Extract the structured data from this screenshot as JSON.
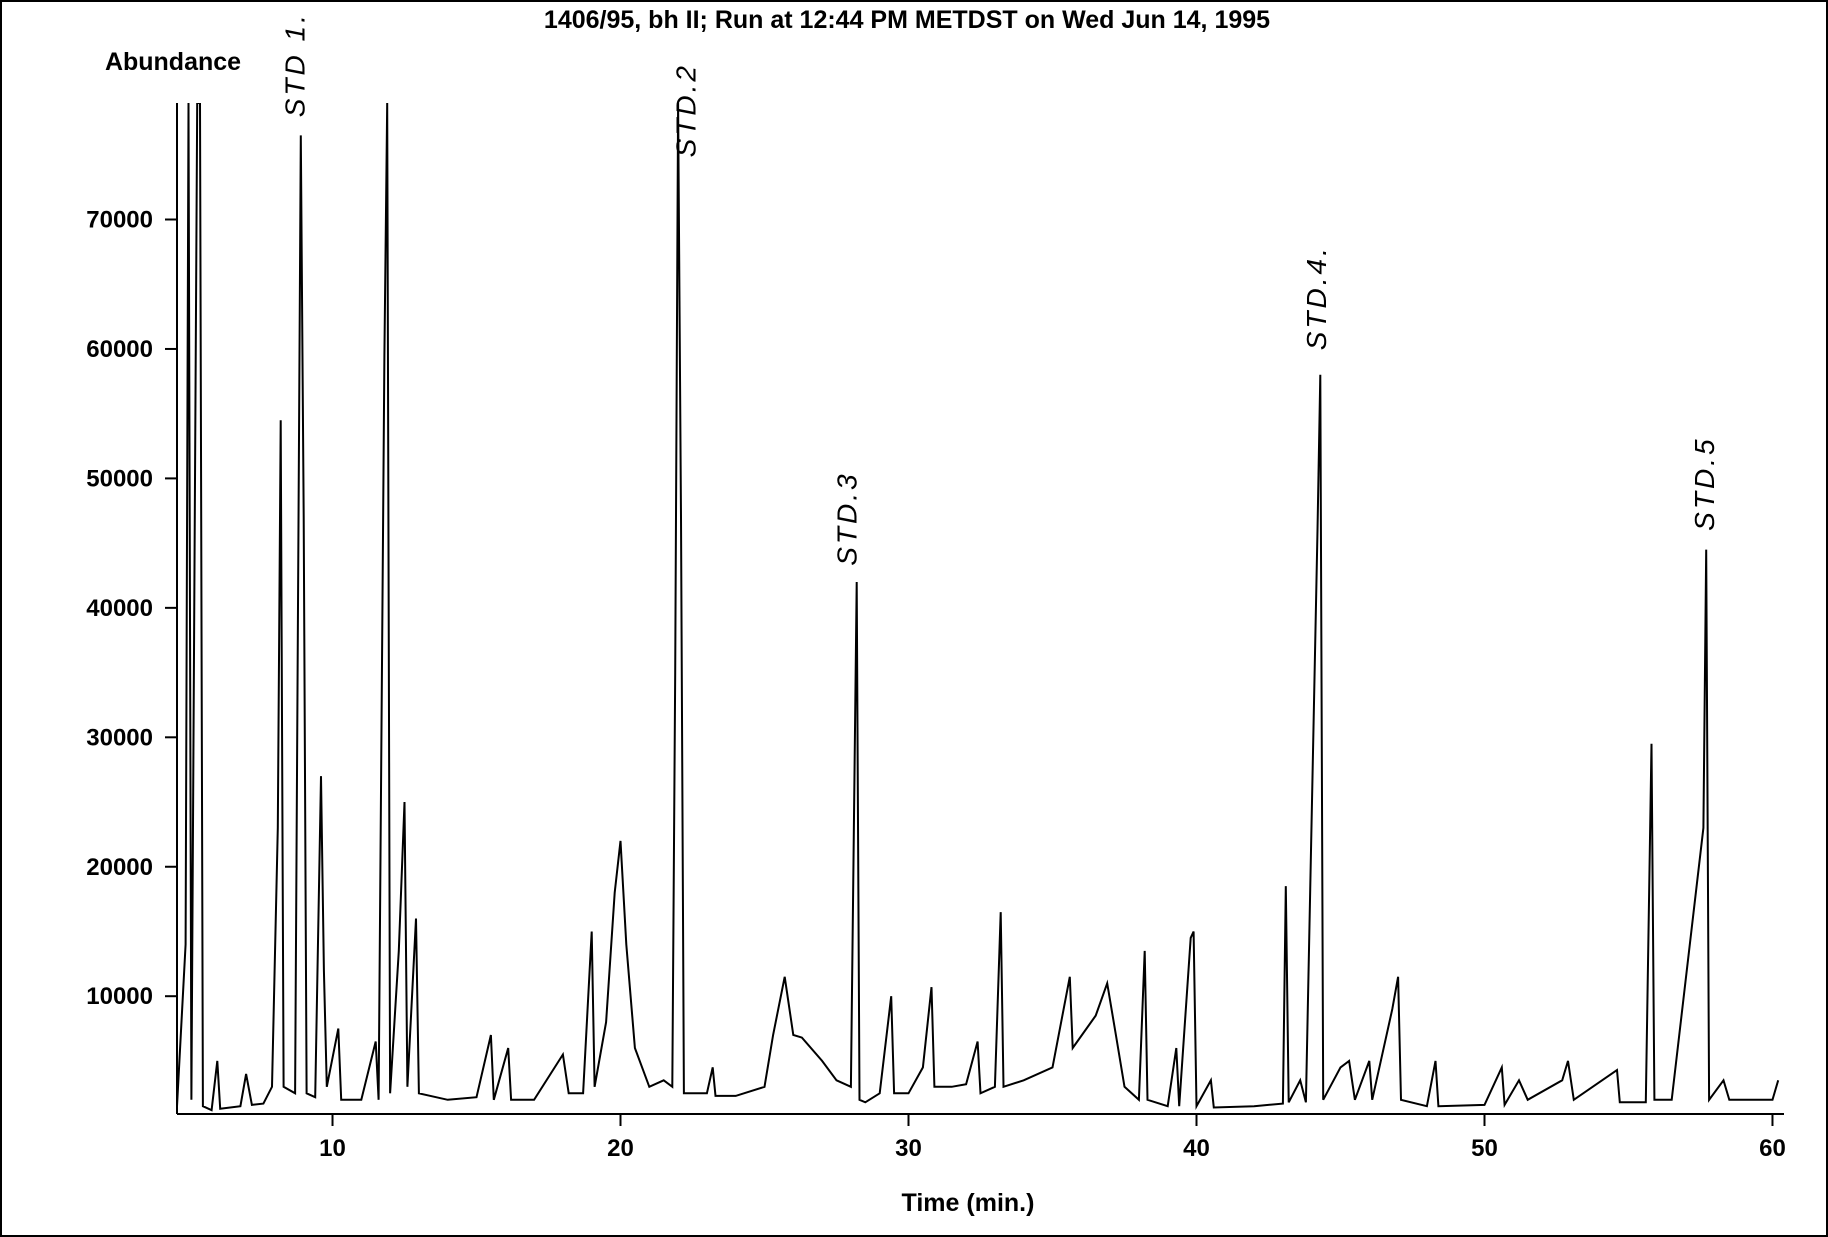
{
  "chart_data": {
    "type": "line",
    "title": "1406/95, bh II; Run at 12:44 PM METDST on Wed Jun 14, 1995",
    "y_label": "Abundance",
    "x_label": "Time (min.)",
    "xlim": [
      4.6,
      60.4
    ],
    "ylim": [
      900,
      79000
    ],
    "xticks": [
      10,
      20,
      30,
      40,
      50,
      60
    ],
    "yticks": [
      10000,
      20000,
      30000,
      40000,
      50000,
      60000,
      70000
    ],
    "color": "#000000",
    "x": [
      4.6,
      4.9,
      5.0,
      5.1,
      5.3,
      5.4,
      5.5,
      5.8,
      6.0,
      6.1,
      6.8,
      7.0,
      7.2,
      7.6,
      7.9,
      8.1,
      8.2,
      8.3,
      8.7,
      8.9,
      9.0,
      9.1,
      9.4,
      9.6,
      9.7,
      9.8,
      10.2,
      10.3,
      11.0,
      11.5,
      11.6,
      11.8,
      11.9,
      12.0,
      12.3,
      12.5,
      12.6,
      12.9,
      13.0,
      14.0,
      15.0,
      15.5,
      15.6,
      16.1,
      16.2,
      17.0,
      18.0,
      18.2,
      18.7,
      19.0,
      19.1,
      19.5,
      19.8,
      20.0,
      20.2,
      20.5,
      21.0,
      21.5,
      21.8,
      21.9,
      22.0,
      22.1,
      22.2,
      23.0,
      23.2,
      23.3,
      24.0,
      25.0,
      25.3,
      25.7,
      26.0,
      26.3,
      27.0,
      27.5,
      28.0,
      28.1,
      28.2,
      28.3,
      28.5,
      29.0,
      29.4,
      29.5,
      30.0,
      30.5,
      30.8,
      30.9,
      31.5,
      32.0,
      32.4,
      32.5,
      33.0,
      33.2,
      33.3,
      34.0,
      35.0,
      35.6,
      35.7,
      36.5,
      36.9,
      37.2,
      37.5,
      38.0,
      38.2,
      38.3,
      39.0,
      39.3,
      39.4,
      39.8,
      39.9,
      40.0,
      40.5,
      40.6,
      42.0,
      43.0,
      43.1,
      43.2,
      43.6,
      43.8,
      44.2,
      44.3,
      44.4,
      45.0,
      45.3,
      45.5,
      46.0,
      46.1,
      46.8,
      47.0,
      47.1,
      48.0,
      48.3,
      48.4,
      50.0,
      50.6,
      50.7,
      51.2,
      51.5,
      52.7,
      52.9,
      53.1,
      54.6,
      54.7,
      55.6,
      55.8,
      55.9,
      56.5,
      57.6,
      57.7,
      57.8,
      58.3,
      58.5,
      60.0,
      60.2
    ],
    "values": [
      1500,
      14000,
      79000,
      2000,
      79000,
      79000,
      1500,
      1200,
      5000,
      1300,
      1500,
      4000,
      1600,
      1700,
      3000,
      23000,
      54500,
      3000,
      2500,
      76500,
      47000,
      2500,
      2200,
      27000,
      12000,
      3000,
      7500,
      2000,
      2000,
      6500,
      2000,
      59500,
      79000,
      2500,
      13500,
      25000,
      3000,
      16000,
      2500,
      2000,
      2200,
      7000,
      2000,
      6000,
      2000,
      2000,
      5500,
      2500,
      2500,
      15000,
      3000,
      8000,
      18000,
      22000,
      14000,
      6000,
      3000,
      3500,
      3000,
      35000,
      79000,
      47000,
      2500,
      2500,
      4500,
      2300,
      2300,
      3000,
      7000,
      11500,
      7000,
      6800,
      5000,
      3500,
      3000,
      22500,
      42000,
      2000,
      1800,
      2500,
      10000,
      2500,
      2500,
      4500,
      10700,
      3000,
      3000,
      3200,
      6500,
      2500,
      3000,
      16500,
      3000,
      3500,
      4500,
      11500,
      6000,
      8500,
      11000,
      7000,
      3000,
      2000,
      13500,
      2000,
      1500,
      6000,
      1500,
      14500,
      15000,
      1500,
      3500,
      1400,
      1500,
      1700,
      18500,
      1800,
      3500,
      1800,
      46000,
      58000,
      2000,
      4500,
      5000,
      2000,
      5000,
      2000,
      9000,
      11500,
      2000,
      1500,
      5000,
      1500,
      1600,
      4500,
      1600,
      3500,
      2000,
      3500,
      5000,
      2000,
      4300,
      1800,
      1800,
      29500,
      2000,
      2000,
      23000,
      44500,
      2000,
      3500,
      2000,
      2000,
      3500
    ],
    "annotations": [
      {
        "text": "STD 1.",
        "x": 9.03,
        "y": 77900
      },
      {
        "text": "STD.2",
        "x": 22.6,
        "y": 74800
      },
      {
        "text": "STD.3",
        "x": 28.2,
        "y": 43250
      },
      {
        "text": "STD.4.",
        "x": 44.5,
        "y": 59900
      },
      {
        "text": "STD.5",
        "x": 57.97,
        "y": 45950
      }
    ]
  }
}
